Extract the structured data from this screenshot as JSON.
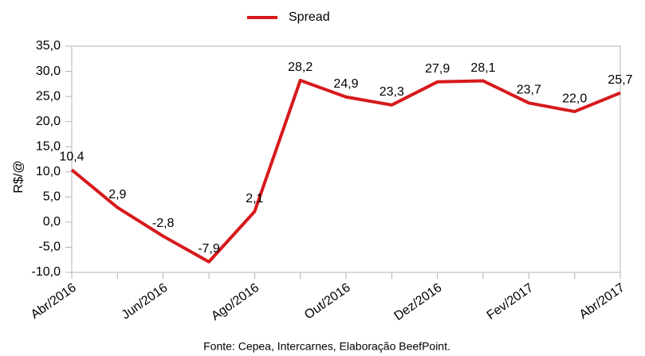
{
  "chart_data": {
    "type": "line",
    "y_label": "R$/@",
    "source": "Fonte: Cepea, Intercarnes, Elaboração BeefPoint.",
    "categories": [
      "Abr/2016",
      null,
      "Jun/2016",
      null,
      "Ago/2016",
      null,
      "Out/2016",
      null,
      "Dez/2016",
      null,
      "Fev/2017",
      null,
      "Abr/2017"
    ],
    "series": [
      {
        "name": "Spread",
        "color": "#d7191c",
        "values": [
          10.4,
          2.9,
          -2.8,
          -7.9,
          2.1,
          28.2,
          24.9,
          23.3,
          27.9,
          28.1,
          23.7,
          22.0,
          25.7
        ],
        "value_labels": [
          "10,4",
          "2,9",
          "-2,8",
          "-7,9",
          "2,1",
          "28,2",
          "24,9",
          "23,3",
          "27,9",
          "28,1",
          "23,7",
          "22,0",
          "25,7"
        ]
      }
    ],
    "ylim": [
      -10,
      35
    ],
    "yticks": [
      {
        "value": -10,
        "label": "-10,0"
      },
      {
        "value": -5,
        "label": "-5,0"
      },
      {
        "value": 0,
        "label": "0,0"
      },
      {
        "value": 5,
        "label": "5,0"
      },
      {
        "value": 10,
        "label": "10,0"
      },
      {
        "value": 15,
        "label": "15,0"
      },
      {
        "value": 20,
        "label": "20,0"
      },
      {
        "value": 25,
        "label": "25,0"
      },
      {
        "value": 30,
        "label": "30,0"
      },
      {
        "value": 35,
        "label": "35,0"
      }
    ],
    "legend": "top"
  }
}
